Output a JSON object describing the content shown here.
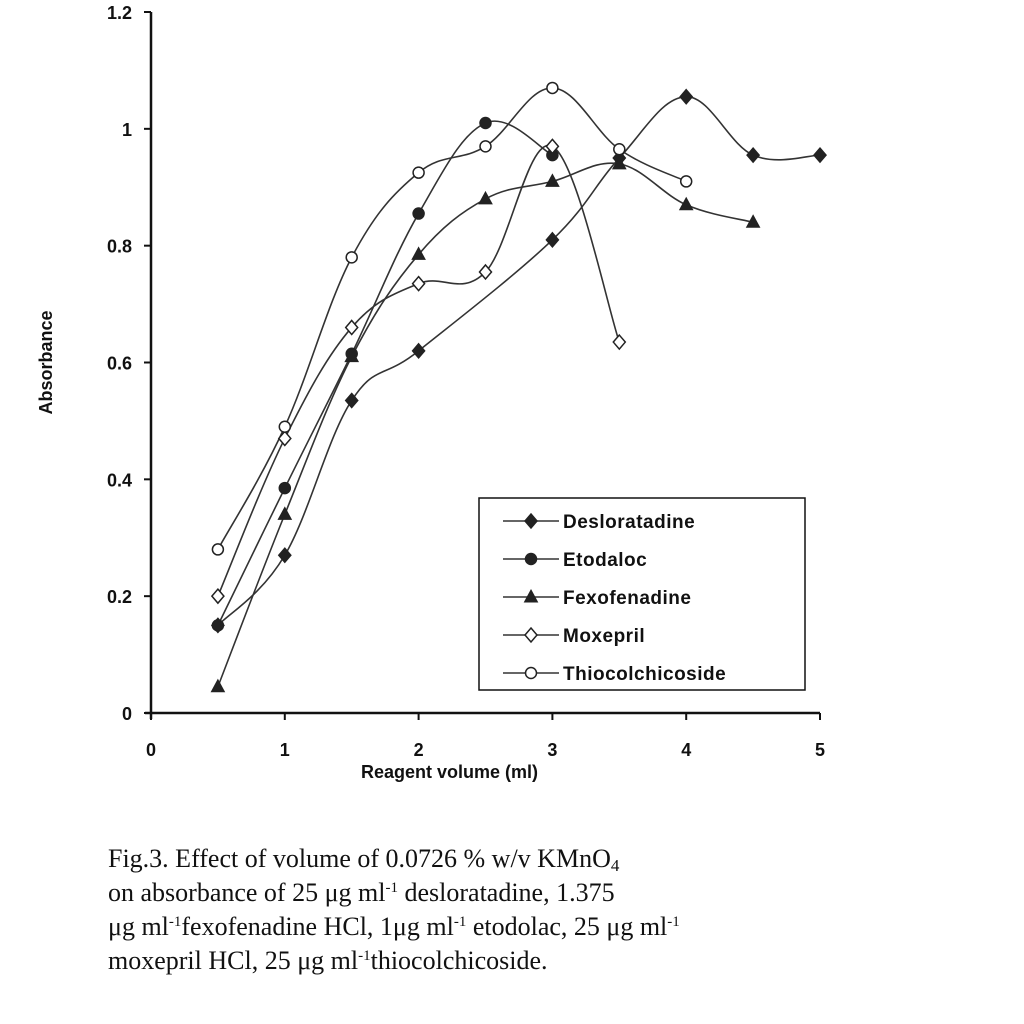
{
  "chart_data": {
    "type": "line",
    "xlabel": "Reagent volume (ml)",
    "ylabel": "Absorbance",
    "xlim": [
      0,
      5
    ],
    "ylim": [
      0,
      1.2
    ],
    "xticks": [
      "0",
      "1",
      "2",
      "3",
      "4",
      "5"
    ],
    "yticks": [
      "0",
      "0.2",
      "0.4",
      "0.6",
      "0.8",
      "1",
      "1.2"
    ],
    "grid": false,
    "legend_position": "bottom-right",
    "series": [
      {
        "name": "Desloratadine",
        "marker": "diamond-filled",
        "points": [
          [
            0.5,
            0.15
          ],
          [
            1.0,
            0.27
          ],
          [
            1.5,
            0.535
          ],
          [
            2.0,
            0.62
          ],
          [
            3.0,
            0.81
          ],
          [
            3.5,
            0.95
          ],
          [
            4.0,
            1.055
          ],
          [
            4.5,
            0.955
          ],
          [
            5.0,
            0.955
          ]
        ]
      },
      {
        "name": "Etodaloc",
        "marker": "circle-filled",
        "points": [
          [
            0.5,
            0.15
          ],
          [
            1.0,
            0.385
          ],
          [
            1.5,
            0.615
          ],
          [
            2.0,
            0.855
          ],
          [
            2.5,
            1.01
          ],
          [
            3.0,
            0.955
          ]
        ]
      },
      {
        "name": "Fexofenadine",
        "marker": "triangle-filled",
        "points": [
          [
            0.5,
            0.045
          ],
          [
            1.0,
            0.34
          ],
          [
            1.5,
            0.61
          ],
          [
            2.0,
            0.785
          ],
          [
            2.5,
            0.88
          ],
          [
            3.0,
            0.91
          ],
          [
            3.5,
            0.94
          ],
          [
            4.0,
            0.87
          ],
          [
            4.5,
            0.84
          ]
        ]
      },
      {
        "name": "Moxepril",
        "marker": "diamond-open",
        "points": [
          [
            0.5,
            0.2
          ],
          [
            1.0,
            0.47
          ],
          [
            1.5,
            0.66
          ],
          [
            2.0,
            0.735
          ],
          [
            2.5,
            0.755
          ],
          [
            3.0,
            0.97
          ],
          [
            3.5,
            0.635
          ]
        ]
      },
      {
        "name": "Thiocolchicoside",
        "marker": "circle-open",
        "points": [
          [
            0.5,
            0.28
          ],
          [
            1.0,
            0.49
          ],
          [
            1.5,
            0.78
          ],
          [
            2.0,
            0.925
          ],
          [
            2.5,
            0.97
          ],
          [
            3.0,
            1.07
          ],
          [
            3.5,
            0.965
          ],
          [
            4.0,
            0.91
          ]
        ]
      }
    ]
  },
  "caption": {
    "line1_a": "Fig.3. Effect of volume of 0.0726 % w/v KMnO",
    "line1_sub": "4",
    "line2_a": " on absorbance of 25 μg ml",
    "line2_sup": "-1",
    "line2_b": " desloratadine, 1.375",
    "line3_a": "μg ml",
    "line3_sup1": "-1",
    "line3_b": "fexofenadine HCl, 1μg ml",
    "line3_sup2": "-1",
    "line3_c": " etodolac, 25 μg ml",
    "line3_sup3": "-1",
    "line4_a": " moxepril HCl, 25 μg ml",
    "line4_sup": "-1",
    "line4_b": "thiocolchicoside."
  }
}
